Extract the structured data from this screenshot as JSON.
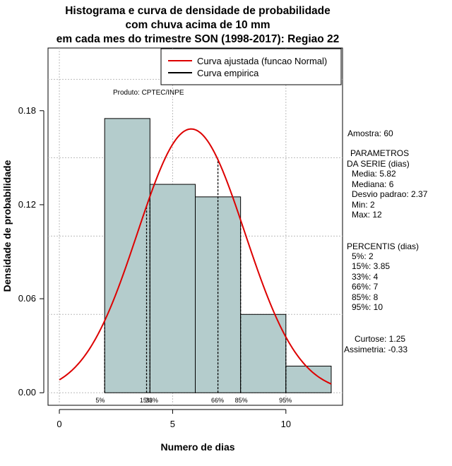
{
  "chart_data": {
    "type": "bar",
    "title": [
      "Histograma e curva de densidade de probabilidade",
      "com chuva acima de 10 mm",
      "em cada mes do trimestre SON (1998-2017): Regiao 22"
    ],
    "xlabel": "Numero de dias",
    "ylabel": "Densidade de probabilidade",
    "xlim": [
      -0.5,
      12.5
    ],
    "ylim": [
      -0.008,
      0.22
    ],
    "x_ticks": [
      0,
      5,
      10
    ],
    "y_ticks": [
      0.0,
      0.06,
      0.12,
      0.18
    ],
    "y_tick_labels": [
      "0.00",
      "0.06",
      "0.12",
      "0.18"
    ],
    "grid": true,
    "grid_x": [
      0,
      5,
      10
    ],
    "grid_y": [
      0.0,
      0.05,
      0.1,
      0.15,
      0.2
    ],
    "bins": [
      {
        "start": 2,
        "end": 4,
        "density": 0.175
      },
      {
        "start": 4,
        "end": 6,
        "density": 0.133
      },
      {
        "start": 6,
        "end": 8,
        "density": 0.125
      },
      {
        "start": 8,
        "end": 10,
        "density": 0.05
      },
      {
        "start": 10,
        "end": 12,
        "density": 0.017
      }
    ],
    "bar_color": "#b4cccc",
    "normal_curve": {
      "name": "Curva ajustada (funcao Normal)",
      "mean": 5.82,
      "sd": 2.37,
      "color": "#dd0000"
    },
    "empirical_curve": {
      "name": "Curva empirica",
      "color": "#000000"
    },
    "legend_position": "top-right",
    "percentile_lines": [
      {
        "label": "5%",
        "x": 2
      },
      {
        "label": "15%",
        "x": 3.85
      },
      {
        "label": "33%",
        "x": 4
      },
      {
        "label": "66%",
        "x": 7
      },
      {
        "label": "85%",
        "x": 8
      },
      {
        "label": "95%",
        "x": 10
      }
    ],
    "percentile_label_text": "5%  15%33%  66%  85%  95%",
    "annotation": "Produto: CPTEC/INPE"
  },
  "stats": {
    "amostra": "Amostra: 60",
    "parametros_title_1": "PARAMETROS",
    "parametros_title_2": "DA SERIE (dias)",
    "media": "Media: 5.82",
    "mediana": "Mediana: 6",
    "desvio": "Desvio padrao: 2.37",
    "min": "Min: 2",
    "max": "Max: 12",
    "percentis_title": "PERCENTIS (dias)",
    "p5": "5%: 2",
    "p15": "15%: 3.85",
    "p33": "33%: 4",
    "p66": "66%: 7",
    "p85": "85%: 8",
    "p95": "95%: 10",
    "curtose": "Curtose: 1.25",
    "assimetria": "Assimetria: -0.33"
  }
}
